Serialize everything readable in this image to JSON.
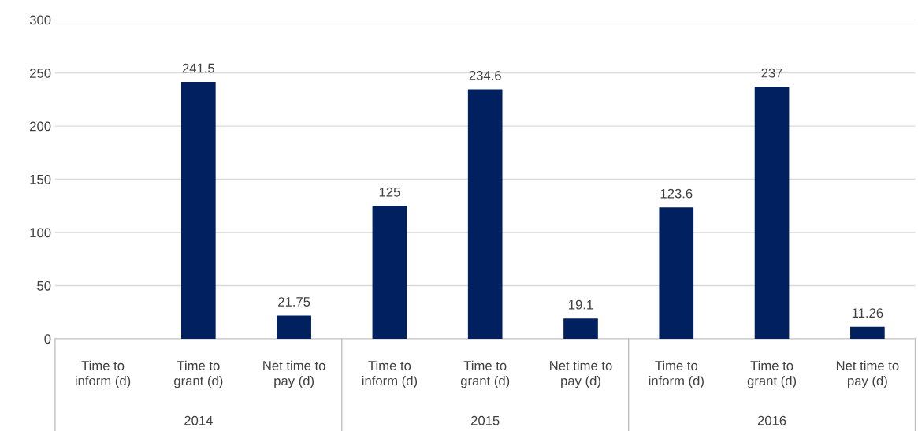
{
  "chart_data": {
    "type": "bar",
    "categories": [
      "Time to\ninform (d)",
      "Time to\ngrant (d)",
      "Net time to\npay (d)",
      "Time to\ninform (d)",
      "Time to\ngrant (d)",
      "Net time to\npay (d)",
      "Time to\ninform (d)",
      "Time to\ngrant (d)",
      "Net time to\npay (d)"
    ],
    "values": [
      null,
      241.5,
      21.75,
      125,
      234.6,
      19.1,
      123.6,
      237,
      11.26
    ],
    "color": "#002060",
    "ylim": [
      0,
      300
    ],
    "yticks": [
      0,
      50,
      100,
      150,
      200,
      250,
      300
    ],
    "grid": "y",
    "data_labels": true,
    "annotations": [
      "2014",
      "2015",
      "2016"
    ]
  }
}
